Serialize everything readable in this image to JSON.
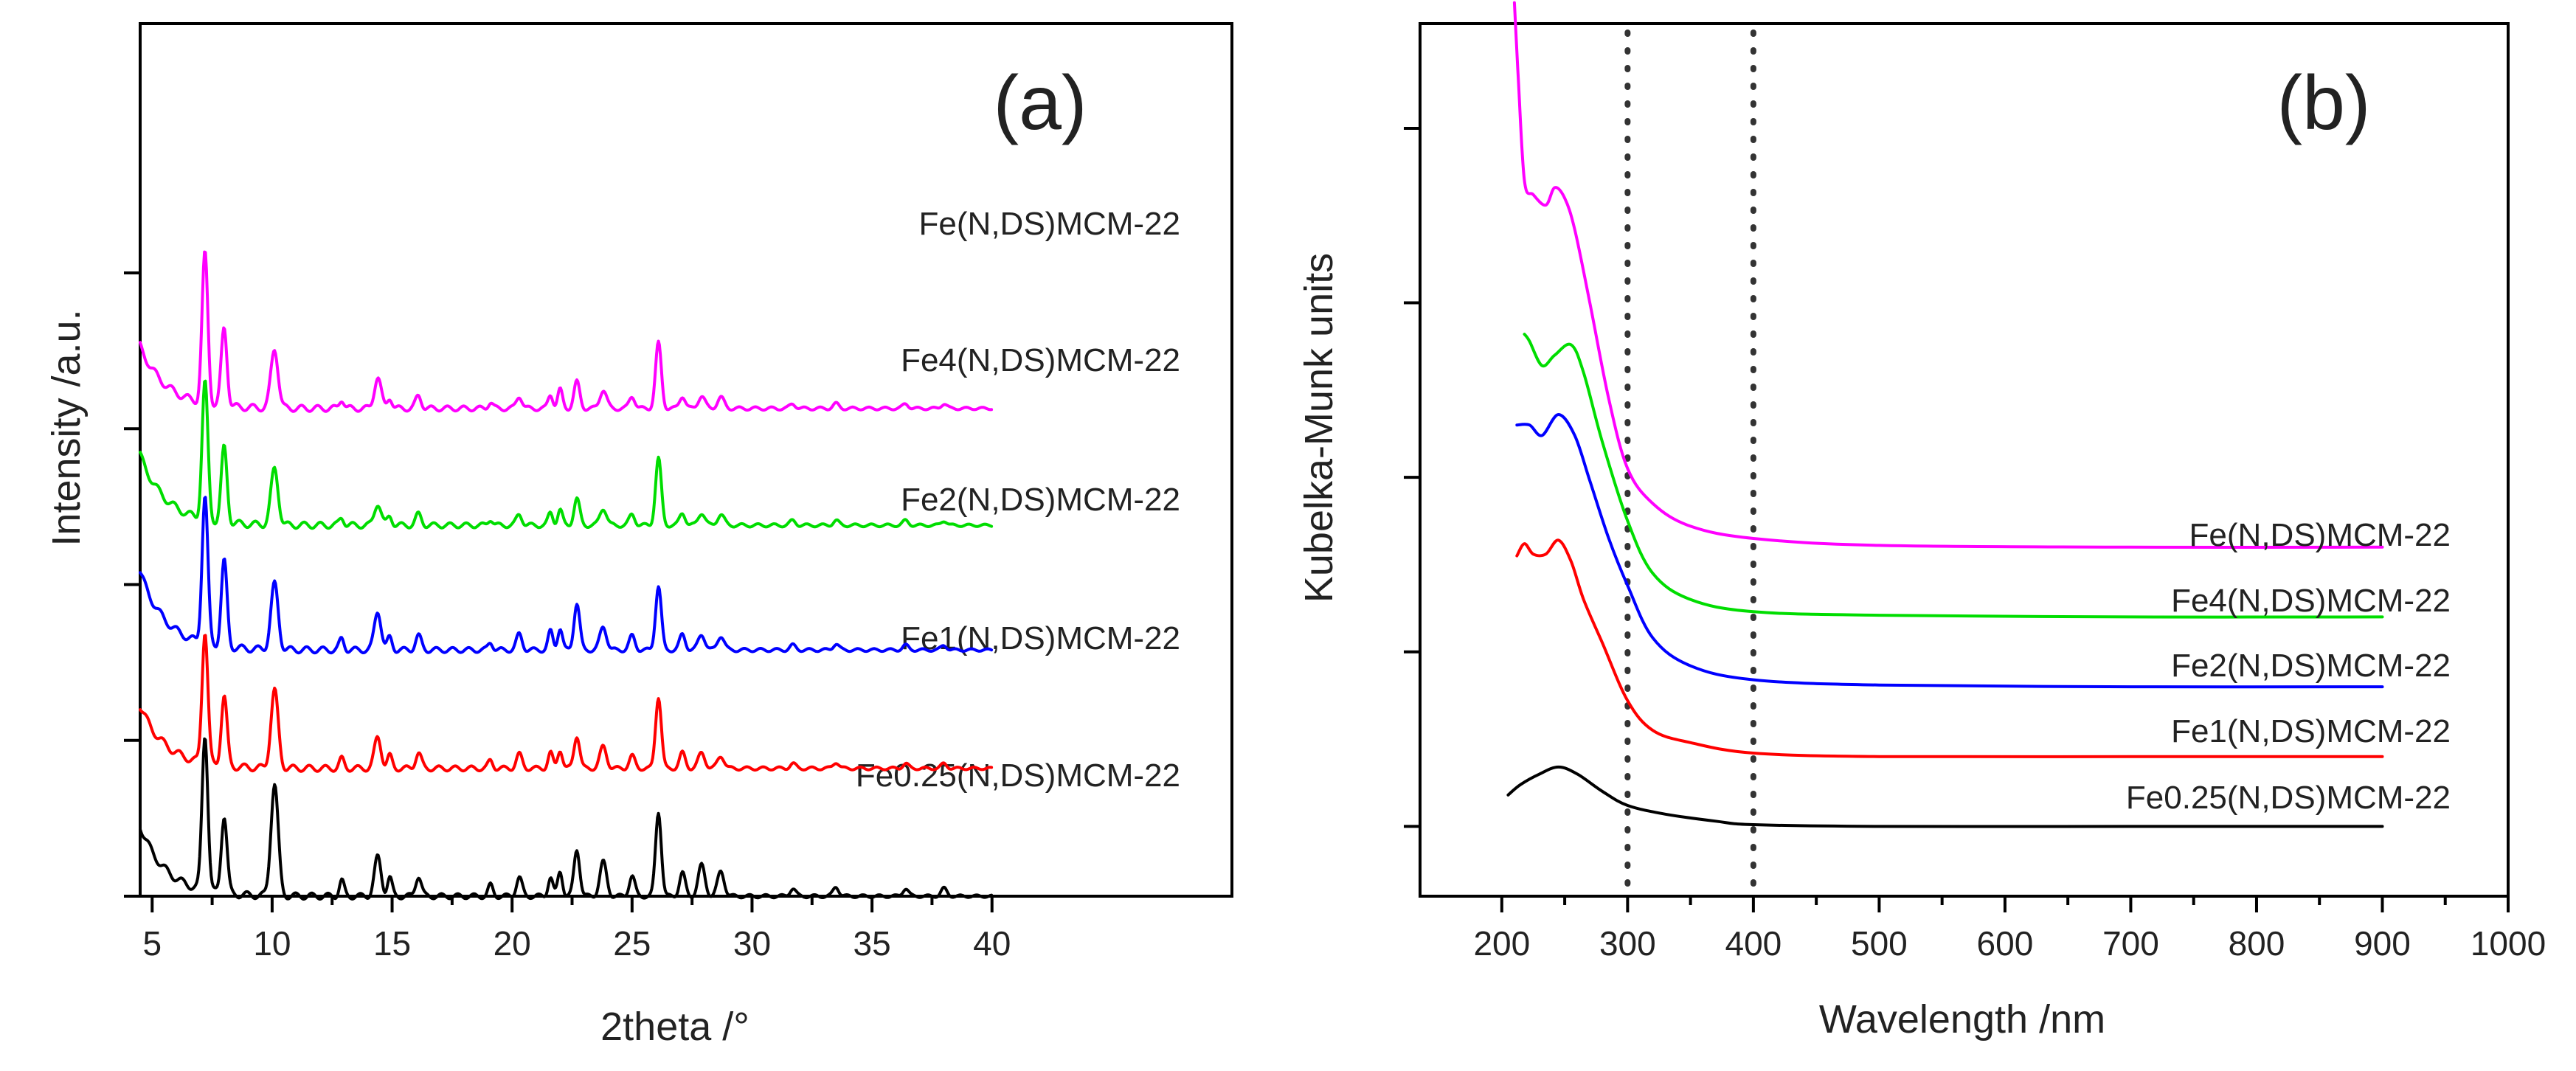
{
  "chart_data": [
    {
      "type": "line",
      "panel": "(a)",
      "xlabel": "2theta /°",
      "ylabel": "Intensity /a.u.",
      "xlim": [
        4.5,
        50
      ],
      "ylim": [
        0,
        5.6
      ],
      "x_ticks": [
        5,
        10,
        15,
        20,
        25,
        30,
        35,
        40
      ],
      "x_tick_labels": [
        "5",
        "10",
        "15",
        "20",
        "25",
        "30",
        "35",
        "40"
      ],
      "y_ticks": [
        0,
        1,
        2,
        3,
        4
      ],
      "y_tick_labels_shown": false,
      "peak_positions": [
        7.2,
        8.0,
        10.1,
        12.9,
        14.4,
        14.9,
        16.1,
        19.1,
        20.3,
        21.6,
        22.0,
        22.7,
        23.8,
        25.0,
        26.1,
        27.1,
        27.9,
        28.7,
        31.7,
        33.5,
        36.4,
        38.0
      ],
      "series": [
        {
          "name": "Fe0.25(N,DS)MCM-22",
          "color": "#000000",
          "offset": 0,
          "peak_heights": [
            1.0,
            0.5,
            0.72,
            0.1,
            0.25,
            0.12,
            0.13,
            0.07,
            0.12,
            0.12,
            0.16,
            0.3,
            0.22,
            0.13,
            0.54,
            0.15,
            0.2,
            0.16,
            0.05,
            0.06,
            0.05,
            0.05
          ],
          "baseline_start": 0.45,
          "baseline_end": 0.0
        },
        {
          "name": "Fe1(N,DS)MCM-22",
          "color": "#ff0000",
          "offset": 0.82,
          "peak_heights": [
            0.85,
            0.45,
            0.5,
            0.06,
            0.2,
            0.08,
            0.1,
            0.05,
            0.09,
            0.1,
            0.12,
            0.21,
            0.14,
            0.08,
            0.46,
            0.1,
            0.1,
            0.08,
            0.03,
            0.04,
            0.03,
            0.03
          ],
          "baseline_start": 0.4,
          "baseline_end": 0.0
        },
        {
          "name": "Fe2(N,DS)MCM-22",
          "color": "#0000ff",
          "offset": 1.58,
          "peak_heights": [
            0.95,
            0.55,
            0.42,
            0.07,
            0.25,
            0.08,
            0.09,
            0.05,
            0.1,
            0.12,
            0.14,
            0.3,
            0.15,
            0.09,
            0.41,
            0.1,
            0.1,
            0.09,
            0.03,
            0.04,
            0.03,
            0.03
          ],
          "baseline_start": 0.5,
          "baseline_end": 0.0
        },
        {
          "name": "Fe4(N,DS)MCM-22",
          "color": "#00dd00",
          "offset": 2.38,
          "peak_heights": [
            0.88,
            0.48,
            0.36,
            0.05,
            0.14,
            0.06,
            0.07,
            0.04,
            0.07,
            0.08,
            0.1,
            0.17,
            0.11,
            0.07,
            0.43,
            0.08,
            0.08,
            0.07,
            0.03,
            0.03,
            0.03,
            0.03
          ],
          "baseline_start": 0.45,
          "baseline_end": 0.0
        },
        {
          "name": "Fe(N,DS)MCM-22",
          "color": "#ff00ff",
          "offset": 3.13,
          "peak_heights": [
            0.96,
            0.5,
            0.38,
            0.06,
            0.2,
            0.07,
            0.08,
            0.04,
            0.08,
            0.09,
            0.12,
            0.17,
            0.12,
            0.08,
            0.42,
            0.08,
            0.08,
            0.07,
            0.03,
            0.03,
            0.03,
            0.03
          ],
          "baseline_start": 0.4,
          "baseline_end": 0.0
        }
      ]
    },
    {
      "type": "line",
      "panel": "(b)",
      "xlabel": "Wavelength /nm",
      "ylabel": "Kubelka-Munk units",
      "xlim": [
        135,
        1000
      ],
      "ylim": [
        -0.4,
        4.6
      ],
      "x_ticks": [
        200,
        300,
        400,
        500,
        600,
        700,
        800,
        900,
        1000
      ],
      "x_tick_labels": [
        "200",
        "300",
        "400",
        "500",
        "600",
        "700",
        "800",
        "900",
        "1000"
      ],
      "y_ticks": [
        0,
        1,
        2,
        3,
        4
      ],
      "y_tick_labels_shown": false,
      "reference_lines_x": [
        300,
        400
      ],
      "series": [
        {
          "name": "Fe0.25(N,DS)MCM-22",
          "color": "#000000",
          "x": [
            205,
            215,
            230,
            245,
            260,
            280,
            300,
            330,
            370,
            400,
            500,
            700,
            900
          ],
          "y": [
            0.18,
            0.24,
            0.3,
            0.34,
            0.3,
            0.2,
            0.12,
            0.07,
            0.03,
            0.01,
            0.0,
            0.0,
            0.0
          ]
        },
        {
          "name": "Fe1(N,DS)MCM-22",
          "color": "#ff0000",
          "x": [
            212,
            218,
            225,
            235,
            245,
            255,
            265,
            280,
            300,
            320,
            350,
            400,
            500,
            700,
            900
          ],
          "y": [
            1.55,
            1.62,
            1.56,
            1.56,
            1.64,
            1.52,
            1.3,
            1.05,
            0.72,
            0.55,
            0.48,
            0.42,
            0.4,
            0.4,
            0.4
          ]
        },
        {
          "name": "Fe2(N,DS)MCM-22",
          "color": "#0000ff",
          "x": [
            212,
            222,
            232,
            245,
            258,
            270,
            285,
            300,
            320,
            350,
            400,
            500,
            700,
            900
          ],
          "y": [
            2.3,
            2.3,
            2.24,
            2.36,
            2.24,
            1.98,
            1.65,
            1.38,
            1.08,
            0.92,
            0.84,
            0.81,
            0.8,
            0.8
          ]
        },
        {
          "name": "Fe4(N,DS)MCM-22",
          "color": "#00dd00",
          "x": [
            218,
            222,
            232,
            242,
            255,
            265,
            280,
            300,
            320,
            350,
            400,
            500,
            700,
            900
          ],
          "y": [
            2.82,
            2.78,
            2.64,
            2.7,
            2.76,
            2.6,
            2.2,
            1.75,
            1.45,
            1.3,
            1.23,
            1.21,
            1.2,
            1.2
          ]
        },
        {
          "name": "Fe(N,DS)MCM-22",
          "color": "#ff00ff",
          "x": [
            210,
            213,
            218,
            225,
            235,
            242,
            250,
            258,
            270,
            285,
            300,
            320,
            350,
            400,
            500,
            700,
            900
          ],
          "y": [
            4.72,
            4.3,
            3.7,
            3.62,
            3.56,
            3.66,
            3.6,
            3.42,
            3.0,
            2.45,
            2.05,
            1.85,
            1.72,
            1.65,
            1.61,
            1.6,
            1.6
          ]
        }
      ]
    }
  ]
}
